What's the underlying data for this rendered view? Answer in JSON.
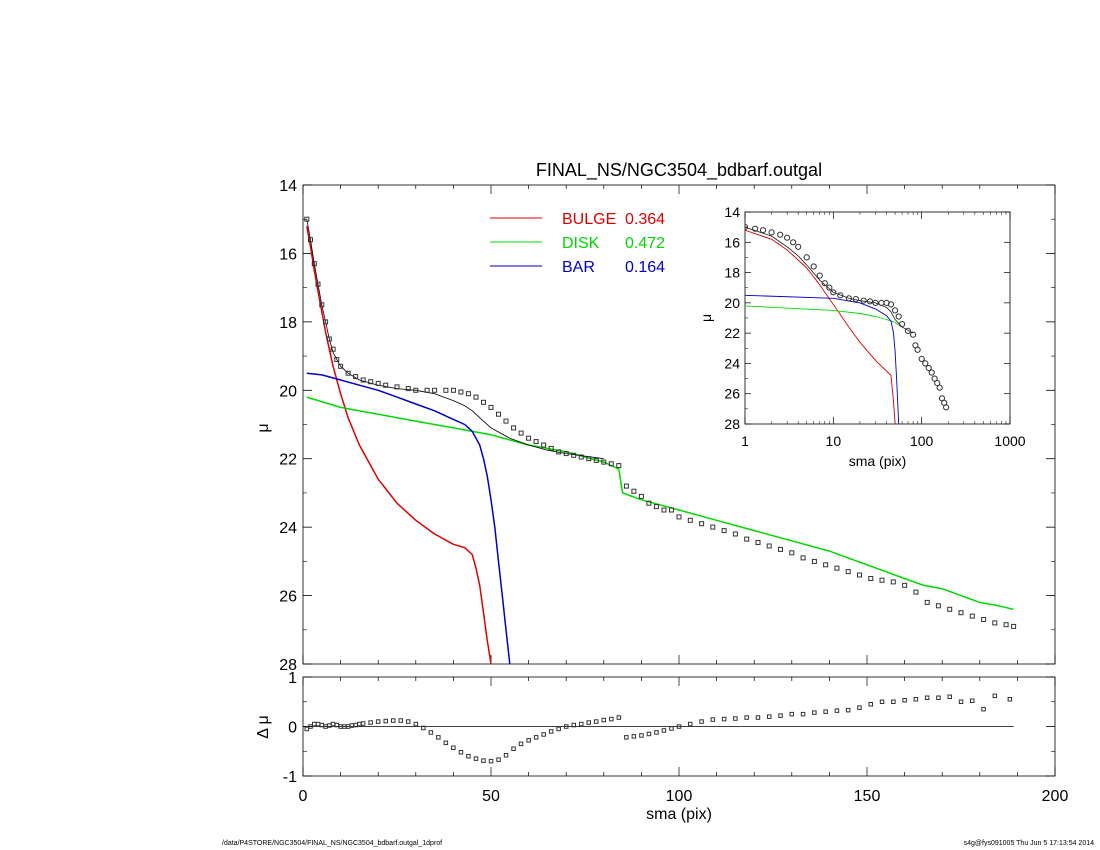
{
  "footer": {
    "path": "/data/P4STORE/NGC3504/FINAL_NS/NGC3504_bdbarf.outgal_1dprof",
    "stamp": "s4g@fys091005  Thu Jun  5 17:13:54 2014"
  },
  "chart_data": [
    {
      "type": "line",
      "title": "FINAL_NS/NGC3504_bdbarf.outgal",
      "xlabel": "",
      "ylabel": "μ",
      "xlim": [
        0,
        200
      ],
      "ylim": [
        28,
        14
      ],
      "y_inverted": true,
      "yticks": [
        14,
        16,
        18,
        20,
        22,
        24,
        26,
        28
      ],
      "xticks": [
        0,
        50,
        100,
        150,
        200
      ],
      "legend_position": "top-center",
      "colors": {
        "bulge": "#e00000",
        "disk": "#00d800",
        "bar": "#0000c8",
        "data": "#333333"
      },
      "legend": [
        {
          "label": "BULGE",
          "value": "0.364",
          "color": "#e00000"
        },
        {
          "label": "DISK",
          "value": "0.472",
          "color": "#00d800"
        },
        {
          "label": "BAR",
          "value": "0.164",
          "color": "#0000c8"
        }
      ],
      "series": [
        {
          "key": "bulge",
          "color": "#e00000",
          "x": [
            1,
            2,
            3,
            4,
            5,
            6,
            7,
            8,
            10,
            12,
            15,
            18,
            20,
            25,
            30,
            35,
            40,
            43,
            45,
            46,
            47,
            48,
            49,
            50
          ],
          "y": [
            15.2,
            15.8,
            16.5,
            17.1,
            17.7,
            18.3,
            18.8,
            19.3,
            20.1,
            20.8,
            21.6,
            22.2,
            22.6,
            23.3,
            23.8,
            24.2,
            24.5,
            24.6,
            24.8,
            25.2,
            25.7,
            26.5,
            27.3,
            28.0
          ]
        },
        {
          "key": "disk",
          "color": "#00d800",
          "x": [
            1,
            10,
            20,
            30,
            40,
            50,
            60,
            70,
            80,
            84,
            85,
            90,
            100,
            110,
            120,
            130,
            140,
            145,
            150,
            155,
            160,
            165,
            170,
            175,
            180,
            185,
            189
          ],
          "y": [
            20.2,
            20.5,
            20.7,
            20.9,
            21.1,
            21.3,
            21.6,
            21.8,
            22.1,
            22.3,
            23.0,
            23.2,
            23.5,
            23.8,
            24.1,
            24.4,
            24.7,
            24.9,
            25.1,
            25.3,
            25.5,
            25.7,
            25.8,
            26.0,
            26.2,
            26.3,
            26.4
          ]
        },
        {
          "key": "bar",
          "color": "#0000c8",
          "x": [
            1,
            5,
            10,
            15,
            20,
            25,
            30,
            35,
            40,
            43,
            45,
            47,
            48,
            49,
            50,
            51,
            52,
            53,
            54,
            55
          ],
          "y": [
            19.5,
            19.55,
            19.7,
            19.85,
            20.0,
            20.2,
            20.4,
            20.6,
            20.85,
            21.0,
            21.2,
            21.6,
            22.0,
            22.5,
            23.2,
            24.0,
            25.0,
            26.0,
            27.0,
            28.0
          ]
        },
        {
          "key": "model",
          "color": "#000000",
          "x": [
            1,
            2,
            3,
            4,
            5,
            6,
            7,
            8,
            10,
            12,
            15,
            20,
            25,
            30,
            35,
            40,
            43,
            45,
            47,
            50,
            55,
            60,
            65,
            70,
            80
          ],
          "y": [
            15.0,
            15.6,
            16.3,
            16.9,
            17.5,
            18.0,
            18.5,
            18.9,
            19.3,
            19.5,
            19.7,
            19.85,
            19.95,
            20.0,
            20.1,
            20.3,
            20.45,
            20.6,
            20.8,
            21.1,
            21.4,
            21.6,
            21.75,
            21.85,
            22.0
          ]
        },
        {
          "key": "data",
          "color": "#333333",
          "x": [
            1,
            2,
            3,
            4,
            5,
            6,
            7,
            8,
            9,
            10,
            12,
            14,
            16,
            18,
            20,
            22,
            25,
            28,
            30,
            33,
            35,
            38,
            40,
            42,
            44,
            46,
            48,
            50,
            52,
            54,
            56,
            58,
            60,
            62,
            64,
            66,
            68,
            70,
            72,
            74,
            76,
            78,
            80,
            82,
            84,
            86,
            88,
            90,
            92,
            94,
            96,
            98,
            100,
            103,
            106,
            109,
            112,
            115,
            118,
            121,
            124,
            127,
            130,
            133,
            136,
            139,
            142,
            145,
            148,
            151,
            154,
            157,
            160,
            163,
            166,
            169,
            172,
            175,
            178,
            181,
            184,
            187,
            189
          ],
          "y": [
            15.0,
            15.6,
            16.3,
            16.9,
            17.5,
            18.0,
            18.5,
            18.8,
            19.1,
            19.3,
            19.5,
            19.6,
            19.7,
            19.75,
            19.8,
            19.85,
            19.9,
            19.95,
            20.0,
            20.0,
            20.0,
            20.0,
            20.0,
            20.05,
            20.1,
            20.2,
            20.35,
            20.5,
            20.7,
            20.9,
            21.1,
            21.25,
            21.4,
            21.5,
            21.6,
            21.7,
            21.8,
            21.85,
            21.9,
            21.95,
            22.0,
            22.05,
            22.1,
            22.15,
            22.2,
            22.8,
            22.95,
            23.1,
            23.3,
            23.4,
            23.5,
            23.5,
            23.7,
            23.8,
            23.9,
            24.0,
            24.1,
            24.2,
            24.35,
            24.45,
            24.55,
            24.65,
            24.75,
            24.9,
            25.0,
            25.1,
            25.2,
            25.3,
            25.4,
            25.5,
            25.55,
            25.6,
            25.7,
            25.9,
            26.2,
            26.3,
            26.4,
            26.5,
            26.6,
            26.7,
            26.8,
            26.85,
            26.9
          ]
        }
      ]
    },
    {
      "type": "line",
      "title": "",
      "xlabel": "sma (pix)",
      "ylabel": "μ",
      "xscale": "log",
      "xlim": [
        1,
        1000
      ],
      "ylim": [
        28,
        14
      ],
      "y_inverted": true,
      "yticks": [
        14,
        16,
        18,
        20,
        22,
        24,
        26,
        28
      ],
      "xticks": [
        1,
        10,
        100,
        1000
      ],
      "series": [
        {
          "key": "bulge",
          "color": "#e00000",
          "x": [
            1,
            2,
            3,
            5,
            7,
            8,
            10,
            15,
            20,
            30,
            40,
            45,
            48,
            50
          ],
          "y": [
            15.2,
            15.8,
            16.5,
            17.7,
            18.8,
            19.3,
            20.1,
            21.6,
            22.6,
            23.8,
            24.5,
            24.8,
            26.5,
            28.0
          ]
        },
        {
          "key": "disk",
          "color": "#00d800",
          "x": [
            1,
            10,
            20,
            30,
            40,
            50,
            60
          ],
          "y": [
            20.2,
            20.5,
            20.7,
            20.9,
            21.1,
            21.3,
            21.6
          ]
        },
        {
          "key": "bar",
          "color": "#0000c8",
          "x": [
            1,
            10,
            20,
            30,
            40,
            45,
            48,
            50,
            52,
            54,
            55
          ],
          "y": [
            19.5,
            19.7,
            20.0,
            20.4,
            20.85,
            21.2,
            22.0,
            23.2,
            25.0,
            27.0,
            28.0
          ]
        },
        {
          "key": "model",
          "color": "#000000",
          "x": [
            1,
            2,
            3,
            4,
            5,
            7,
            10,
            15,
            20,
            30,
            40,
            45,
            50,
            60,
            80
          ],
          "y": [
            15.0,
            15.6,
            16.3,
            16.9,
            17.5,
            18.5,
            19.3,
            19.7,
            19.85,
            20.0,
            20.3,
            20.6,
            21.1,
            21.6,
            22.0
          ]
        },
        {
          "key": "data",
          "color": "#333333",
          "x": [
            1,
            1.3,
            1.6,
            2,
            2.5,
            3,
            3.5,
            4,
            5,
            6,
            7,
            8,
            9,
            10,
            12,
            15,
            18,
            22,
            26,
            30,
            35,
            40,
            45,
            50,
            55,
            60,
            70,
            80,
            85,
            90,
            100,
            110,
            120,
            130,
            140,
            150,
            160,
            170,
            180,
            189
          ],
          "y": [
            15.0,
            15.1,
            15.2,
            15.35,
            15.5,
            15.7,
            16.0,
            16.3,
            17.0,
            17.6,
            18.2,
            18.7,
            19.0,
            19.3,
            19.5,
            19.7,
            19.75,
            19.85,
            19.9,
            20.0,
            20.0,
            20.0,
            20.1,
            20.5,
            20.9,
            21.4,
            21.85,
            22.1,
            22.8,
            23.1,
            23.7,
            24.0,
            24.3,
            24.6,
            25.0,
            25.3,
            25.6,
            26.3,
            26.6,
            26.9
          ]
        }
      ]
    },
    {
      "type": "scatter",
      "title": "",
      "xlabel": "sma (pix)",
      "ylabel": "Δ μ",
      "xlim": [
        0,
        200
      ],
      "ylim": [
        -1,
        1
      ],
      "yticks": [
        -1,
        0,
        1
      ],
      "xticks": [
        0,
        50,
        100,
        150,
        200
      ],
      "zero_line": true,
      "series": [
        {
          "key": "residual",
          "color": "#333333",
          "x": [
            1,
            2,
            3,
            4,
            5,
            6,
            7,
            8,
            9,
            10,
            11,
            12,
            13,
            14,
            15,
            16,
            18,
            20,
            22,
            24,
            26,
            28,
            30,
            32,
            34,
            36,
            38,
            40,
            42,
            44,
            46,
            48,
            50,
            52,
            54,
            56,
            58,
            60,
            62,
            64,
            66,
            68,
            70,
            72,
            74,
            76,
            78,
            80,
            82,
            84,
            86,
            88,
            90,
            92,
            94,
            96,
            98,
            100,
            103,
            106,
            109,
            112,
            115,
            118,
            121,
            124,
            127,
            130,
            133,
            136,
            139,
            142,
            145,
            148,
            151,
            154,
            157,
            160,
            163,
            166,
            169,
            172,
            175,
            178,
            181,
            184,
            188
          ],
          "y": [
            -0.05,
            0.0,
            0.05,
            0.05,
            0.03,
            0.0,
            0.02,
            0.05,
            0.03,
            0.0,
            0.0,
            0.0,
            0.02,
            0.03,
            0.05,
            0.06,
            0.08,
            0.1,
            0.11,
            0.12,
            0.12,
            0.1,
            0.05,
            -0.03,
            -0.12,
            -0.22,
            -0.33,
            -0.43,
            -0.52,
            -0.6,
            -0.65,
            -0.69,
            -0.7,
            -0.67,
            -0.58,
            -0.45,
            -0.35,
            -0.28,
            -0.22,
            -0.16,
            -0.1,
            -0.05,
            0.0,
            0.03,
            0.05,
            0.08,
            0.1,
            0.13,
            0.15,
            0.18,
            -0.22,
            -0.2,
            -0.18,
            -0.15,
            -0.12,
            -0.08,
            -0.04,
            0.0,
            0.05,
            0.1,
            0.14,
            0.15,
            0.16,
            0.18,
            0.18,
            0.2,
            0.22,
            0.25,
            0.25,
            0.28,
            0.3,
            0.32,
            0.33,
            0.38,
            0.45,
            0.5,
            0.5,
            0.53,
            0.55,
            0.58,
            0.58,
            0.6,
            0.5,
            0.52,
            0.35,
            0.62,
            0.55
          ]
        }
      ]
    }
  ]
}
